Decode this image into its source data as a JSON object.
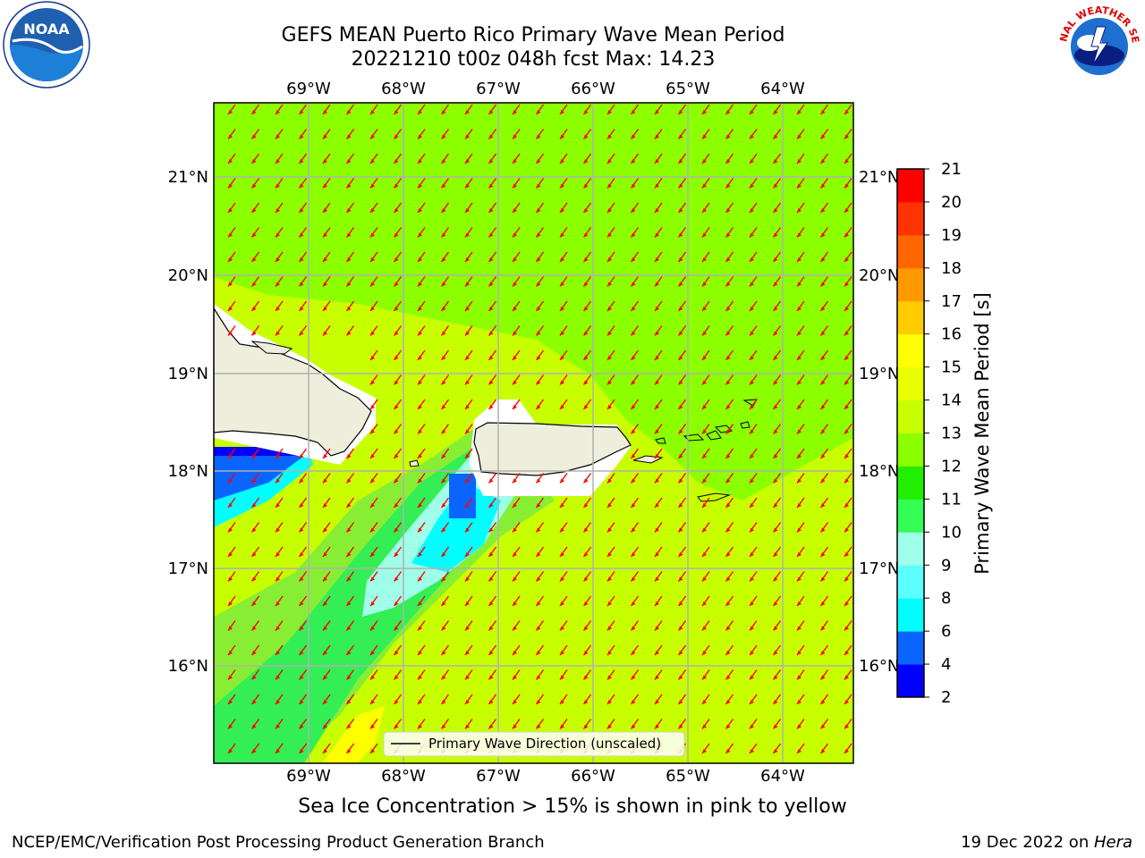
{
  "title_line1": "GEFS MEAN Puerto Rico Primary Wave Mean Period",
  "title_line2": "20221210 t00z 048h fcst   Max: 14.23",
  "lon_ticks": [
    "69°W",
    "68°W",
    "67°W",
    "66°W",
    "65°W",
    "64°W"
  ],
  "lat_ticks": [
    "21°N",
    "20°N",
    "19°N",
    "18°N",
    "17°N",
    "16°N"
  ],
  "colorbar": {
    "label": "Primary Wave Mean Period [s]",
    "ticks": [
      "2",
      "4",
      "6",
      "8",
      "9",
      "10",
      "11",
      "12",
      "13",
      "14",
      "15",
      "16",
      "17",
      "18",
      "19",
      "20",
      "21"
    ],
    "colors": [
      "#0000ff",
      "#0a64ff",
      "#00ffff",
      "#5cffff",
      "#a0ffe8",
      "#33ff55",
      "#22ee00",
      "#8cff00",
      "#c8ff00",
      "#e8ff00",
      "#ffff00",
      "#ffcc00",
      "#ff9900",
      "#ff6600",
      "#ff3300",
      "#ff0000"
    ]
  },
  "legend": {
    "label": "Primary Wave Direction (unscaled)",
    "line_color": "#000000"
  },
  "sea_ice_note": "Sea Ice Concentration > 15% is shown in pink to yellow",
  "footer_left": "NCEP/EMC/Verification Post Processing Product Generation Branch",
  "footer_right_prefix": "19 Dec 2022 on ",
  "footer_right_host": "Hera",
  "logos": {
    "left": "NOAA",
    "right_text": "NATIONAL WEATHER SERVICE"
  },
  "arrow_color": "#ff0000"
}
